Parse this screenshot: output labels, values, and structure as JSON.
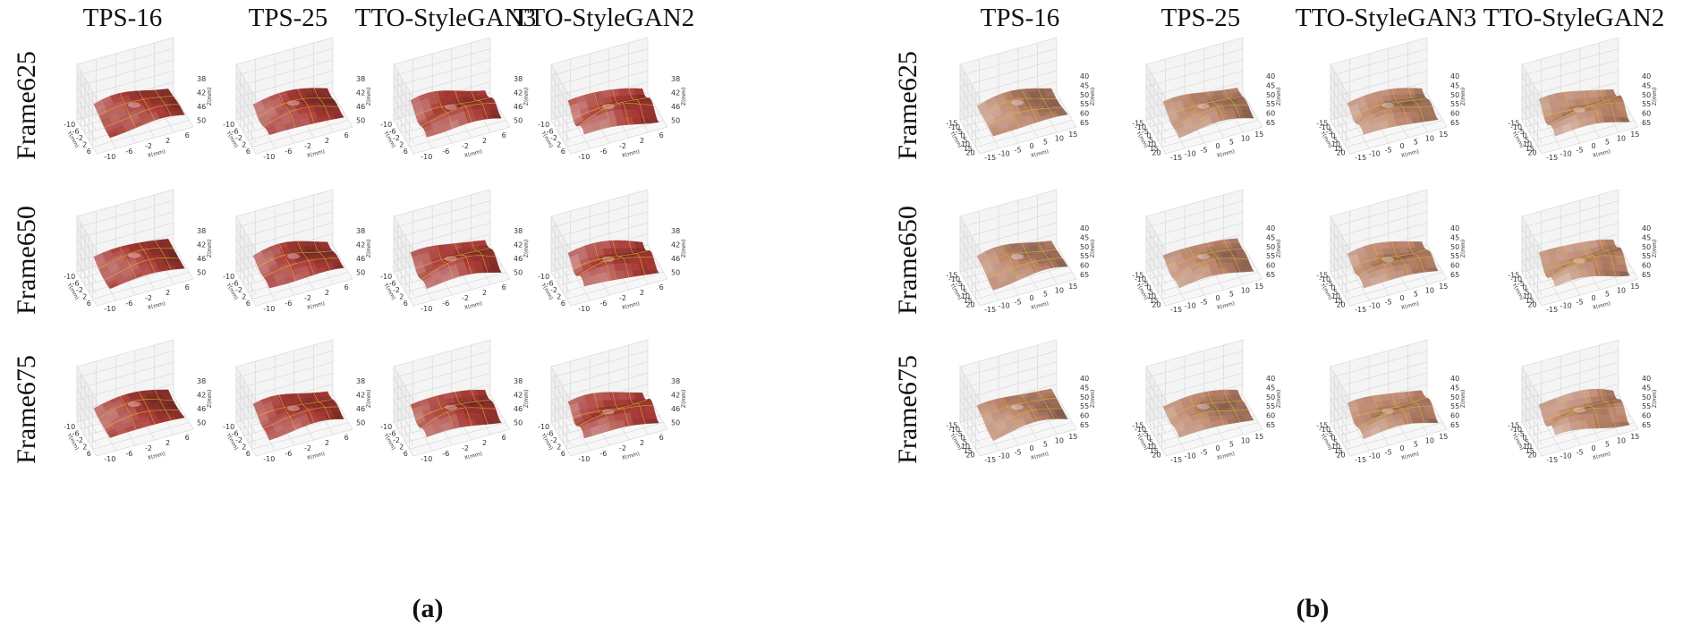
{
  "panels": [
    {
      "caption": "(a)",
      "columns": [
        "TPS-16",
        "TPS-25",
        "TTO-StyleGAN3",
        "TTO-StyleGAN2"
      ],
      "rows": [
        "Frame625",
        "Frame650",
        "Frame675"
      ],
      "axes": {
        "x_label": "X(mm)",
        "y_label": "Y(mm)",
        "z_label": "Z(mm)",
        "x_ticks": [
          "-10",
          "-6",
          "-2",
          "2",
          "6"
        ],
        "y_ticks": [
          "-10",
          "-6",
          "-2",
          "2",
          "6"
        ],
        "z_ticks": [
          "38",
          "42",
          "46",
          "50"
        ]
      },
      "surface_color": "#a83a35",
      "grid_line_color": "#e8b530"
    },
    {
      "caption": "(b)",
      "columns": [
        "TPS-16",
        "TPS-25",
        "TTO-StyleGAN3",
        "TTO-StyleGAN2"
      ],
      "rows": [
        "Frame625",
        "Frame650",
        "Frame675"
      ],
      "axes": {
        "x_label": "X(mm)",
        "y_label": "Y(mm)",
        "z_label": "Z(mm)",
        "x_ticks": [
          "-15",
          "-10",
          "-5",
          "0",
          "5",
          "10",
          "15"
        ],
        "y_ticks": [
          "-15",
          "-10",
          "-5",
          "0",
          "5",
          "10",
          "15",
          "20"
        ],
        "z_ticks": [
          "40",
          "45",
          "50",
          "55",
          "60",
          "65"
        ]
      },
      "surface_color": "#b9836a",
      "grid_line_color": "#e8b530"
    }
  ]
}
